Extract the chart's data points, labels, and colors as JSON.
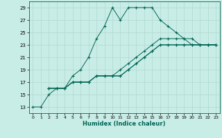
{
  "title": "",
  "xlabel": "Humidex (Indice chaleur)",
  "bg_color": "#c8ece6",
  "grid_color": "#b0d8d0",
  "line_color": "#006655",
  "xlim": [
    -0.5,
    23.5
  ],
  "ylim": [
    12,
    30
  ],
  "xticks": [
    0,
    1,
    2,
    3,
    4,
    5,
    6,
    7,
    8,
    9,
    10,
    11,
    12,
    13,
    14,
    15,
    16,
    17,
    18,
    19,
    20,
    21,
    22,
    23
  ],
  "yticks": [
    13,
    15,
    17,
    19,
    21,
    23,
    25,
    27,
    29
  ],
  "lines": [
    {
      "x": [
        0,
        1,
        2,
        3,
        4,
        5,
        6,
        7,
        8,
        9,
        10,
        11,
        12,
        13,
        14,
        15,
        16,
        17,
        18,
        19,
        20,
        21,
        22,
        23
      ],
      "y": [
        13,
        13,
        15,
        16,
        16,
        18,
        19,
        21,
        24,
        26,
        29,
        27,
        29,
        29,
        29,
        29,
        27,
        26,
        25,
        24,
        23,
        23,
        23,
        23
      ]
    },
    {
      "x": [
        2,
        3,
        4,
        5,
        6,
        7,
        8,
        9,
        10,
        11,
        12,
        13,
        14,
        15,
        16,
        17,
        18,
        19,
        20,
        21,
        22,
        23
      ],
      "y": [
        16,
        16,
        16,
        17,
        17,
        17,
        18,
        18,
        18,
        19,
        20,
        21,
        22,
        23,
        24,
        24,
        24,
        24,
        24,
        23,
        23,
        23
      ]
    },
    {
      "x": [
        2,
        3,
        4,
        5,
        6,
        7,
        8,
        9,
        10,
        11,
        12,
        13,
        14,
        15,
        16,
        17,
        18,
        19,
        20,
        21,
        22,
        23
      ],
      "y": [
        16,
        16,
        16,
        17,
        17,
        17,
        18,
        18,
        18,
        18,
        19,
        20,
        21,
        22,
        23,
        23,
        23,
        23,
        23,
        23,
        23,
        23
      ]
    },
    {
      "x": [
        2,
        3,
        4,
        5,
        6,
        7,
        8,
        9,
        10,
        11,
        12,
        13,
        14,
        15,
        16,
        17,
        18,
        19,
        20,
        21,
        22,
        23
      ],
      "y": [
        16,
        16,
        16,
        17,
        17,
        17,
        18,
        18,
        18,
        18,
        19,
        20,
        21,
        22,
        23,
        23,
        23,
        23,
        23,
        23,
        23,
        23
      ]
    }
  ]
}
